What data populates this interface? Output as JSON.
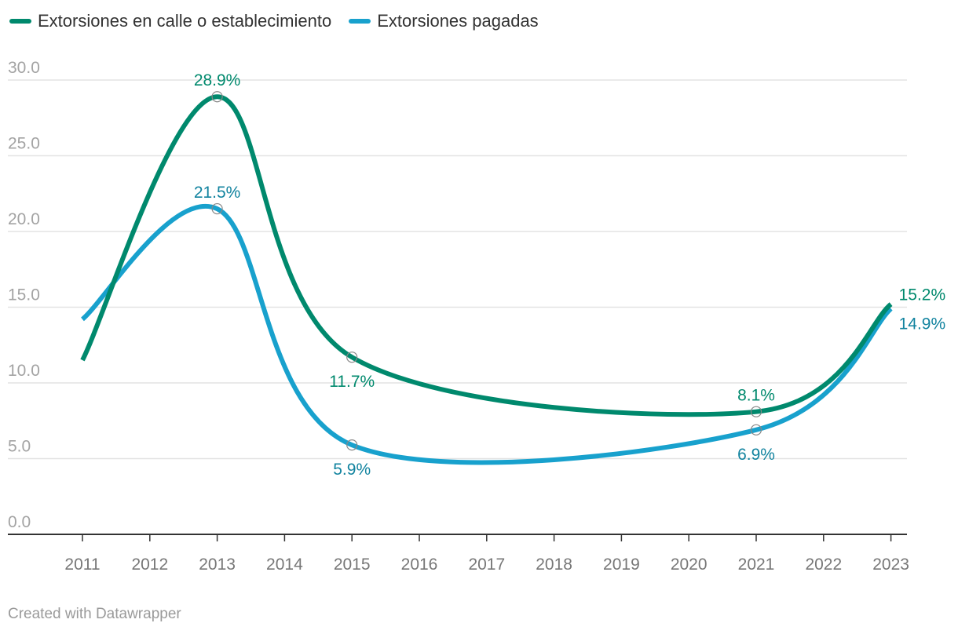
{
  "chart_data": {
    "type": "line",
    "x": [
      "2011",
      "2012",
      "2013",
      "2014",
      "2015",
      "2016",
      "2017",
      "2018",
      "2019",
      "2020",
      "2021",
      "2022",
      "2023"
    ],
    "y_ticks": [
      {
        "value": 0,
        "label": "0.0"
      },
      {
        "value": 5,
        "label": "5.0"
      },
      {
        "value": 10,
        "label": "10.0"
      },
      {
        "value": 15,
        "label": "15.0"
      },
      {
        "value": 20,
        "label": "20.0"
      },
      {
        "value": 25,
        "label": "25.0"
      },
      {
        "value": 30,
        "label": "30.0"
      }
    ],
    "ylim": [
      0,
      30
    ],
    "grid": true,
    "legend_position": "top-left",
    "series": [
      {
        "name": "Extorsiones en calle o establecimiento",
        "color": "#00896d",
        "points": [
          {
            "x": "2011",
            "y": 11.5
          },
          {
            "x": "2013",
            "y": 28.9
          },
          {
            "x": "2015",
            "y": 11.7
          },
          {
            "x": "2021",
            "y": 8.1
          },
          {
            "x": "2023",
            "y": 15.2
          }
        ],
        "labels": [
          {
            "x": "2013",
            "y": 28.9,
            "text": "28.9%",
            "placement": "above",
            "marker": true
          },
          {
            "x": "2015",
            "y": 11.7,
            "text": "11.7%",
            "placement": "below",
            "marker": true
          },
          {
            "x": "2021",
            "y": 8.1,
            "text": "8.1%",
            "placement": "above",
            "marker": true
          },
          {
            "x": "2023",
            "y": 15.2,
            "text": "15.2%",
            "placement": "right-above",
            "marker": false
          }
        ]
      },
      {
        "name": "Extorsiones pagadas",
        "color": "#18a1cd",
        "label_color": "#11839f",
        "points": [
          {
            "x": "2011",
            "y": 14.2
          },
          {
            "x": "2013",
            "y": 21.5
          },
          {
            "x": "2015",
            "y": 5.9
          },
          {
            "x": "2021",
            "y": 6.9
          },
          {
            "x": "2023",
            "y": 14.9
          }
        ],
        "labels": [
          {
            "x": "2013",
            "y": 21.5,
            "text": "21.5%",
            "placement": "above",
            "marker": true
          },
          {
            "x": "2015",
            "y": 5.9,
            "text": "5.9%",
            "placement": "below",
            "marker": true
          },
          {
            "x": "2021",
            "y": 6.9,
            "text": "6.9%",
            "placement": "below",
            "marker": true
          },
          {
            "x": "2023",
            "y": 14.9,
            "text": "14.9%",
            "placement": "right-below",
            "marker": false
          }
        ]
      }
    ]
  },
  "legend": {
    "items": [
      {
        "label": "Extorsiones en calle o establecimiento",
        "color": "#00896d"
      },
      {
        "label": "Extorsiones pagadas",
        "color": "#18a1cd"
      }
    ]
  },
  "footer": {
    "text": "Created with Datawrapper"
  }
}
